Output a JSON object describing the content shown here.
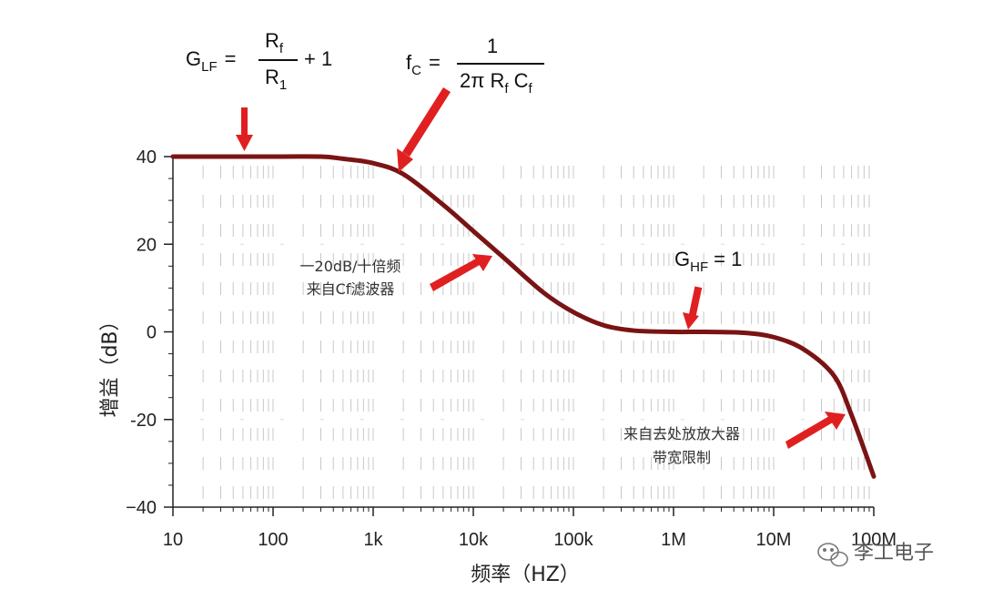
{
  "chart_data": {
    "type": "line",
    "xscale": "log",
    "xlim": [
      10,
      100000000
    ],
    "ylim": [
      -40,
      40
    ],
    "xlabel": "频率（HZ）",
    "ylabel": "增益（dB）",
    "x_ticks": [
      {
        "value": 10,
        "label": "10"
      },
      {
        "value": 100,
        "label": "100"
      },
      {
        "value": 1000,
        "label": "1k"
      },
      {
        "value": 10000,
        "label": "10k"
      },
      {
        "value": 100000,
        "label": "100k"
      },
      {
        "value": 1000000,
        "label": "1M"
      },
      {
        "value": 10000000,
        "label": "10M"
      },
      {
        "value": 100000000,
        "label": "100M"
      }
    ],
    "y_ticks": [
      {
        "value": 40,
        "label": "40"
      },
      {
        "value": 20,
        "label": "20"
      },
      {
        "value": 0,
        "label": "0"
      },
      {
        "value": -20,
        "label": "-20"
      },
      {
        "value": -40,
        "label": "−40"
      }
    ],
    "grid": "dashed vertical",
    "line_color": "#7a1414",
    "series": [
      {
        "x": [
          10,
          100,
          300,
          500,
          1000,
          2000,
          5000,
          10000,
          20000,
          50000,
          100000,
          200000,
          400000,
          1000000,
          2000000,
          5000000,
          10000000,
          20000000,
          40000000,
          60000000,
          100000000
        ],
        "y": [
          40,
          40,
          40,
          39.5,
          38.5,
          36,
          29,
          23,
          17,
          9,
          4.5,
          1.5,
          0.3,
          0,
          0,
          -0.2,
          -1.2,
          -4,
          -10,
          -19,
          -33
        ]
      }
    ],
    "annotations": {
      "glf_formula": {
        "lhs_main": "G",
        "lhs_sub": "LF",
        "eq": "=",
        "num_main": "R",
        "num_sub": "f",
        "den_main": "R",
        "den_sub": "1",
        "tail": "+ 1"
      },
      "fc_formula": {
        "lhs_main": "f",
        "lhs_sub": "C",
        "eq": "=",
        "num": "1",
        "den_a": "2π R",
        "den_a_sub": "f",
        "den_b": "C",
        "den_b_sub": "f"
      },
      "ghf_label": {
        "main": "G",
        "sub": "HF",
        "tail": "= 1"
      },
      "slope_text": [
        "一20dB/十倍频",
        "来自Cf滤波器"
      ],
      "opamp_text": [
        "来自去处放放大器",
        "带宽限制"
      ],
      "arrow_color": "#e02020"
    }
  },
  "watermark": {
    "text": "李工电子",
    "icon": "wechat-icon"
  }
}
